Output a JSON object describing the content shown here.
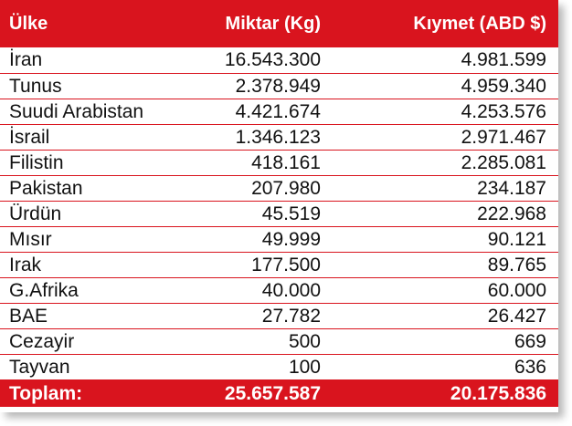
{
  "headers": {
    "country": "Ülke",
    "quantity": "Miktar (Kg)",
    "value": "Kıymet (ABD $)"
  },
  "rows": [
    {
      "country": "İran",
      "quantity": "16.543.300",
      "value": "4.981.599"
    },
    {
      "country": "Tunus",
      "quantity": "2.378.949",
      "value": "4.959.340"
    },
    {
      "country": "Suudi Arabistan",
      "quantity": "4.421.674",
      "value": "4.253.576"
    },
    {
      "country": "İsrail",
      "quantity": "1.346.123",
      "value": "2.971.467"
    },
    {
      "country": "Filistin",
      "quantity": "418.161",
      "value": "2.285.081"
    },
    {
      "country": "Pakistan",
      "quantity": "207.980",
      "value": "234.187"
    },
    {
      "country": "Ürdün",
      "quantity": "45.519",
      "value": "222.968"
    },
    {
      "country": "Mısır",
      "quantity": "49.999",
      "value": "90.121"
    },
    {
      "country": "Irak",
      "quantity": "177.500",
      "value": "89.765"
    },
    {
      "country": "G.Afrika",
      "quantity": "40.000",
      "value": "60.000"
    },
    {
      "country": "BAE",
      "quantity": "27.782",
      "value": "26.427"
    },
    {
      "country": "Cezayir",
      "quantity": "500",
      "value": "669"
    },
    {
      "country": "Tayvan",
      "quantity": "100",
      "value": "636"
    }
  ],
  "total": {
    "label": "Toplam:",
    "quantity": "25.657.587",
    "value": "20.175.836"
  },
  "colors": {
    "accent": "#d9141e",
    "header_text": "#ffffff",
    "body_text": "#111111"
  }
}
